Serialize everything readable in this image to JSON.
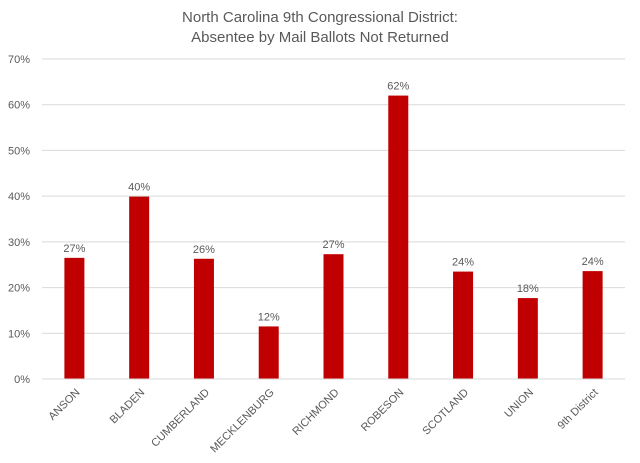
{
  "chart_data": {
    "type": "bar",
    "title": [
      "North Carolina 9th Congressional District:",
      "Absentee by Mail Ballots Not Returned"
    ],
    "xlabel": "",
    "ylabel": "",
    "categories": [
      "ANSON",
      "BLADEN",
      "CUMBERLAND",
      "MECKLENBURG",
      "RICHMOND",
      "ROBESON",
      "SCOTLAND",
      "UNION",
      "9th District"
    ],
    "values": [
      26.5,
      39.9,
      26.3,
      11.5,
      27.3,
      62.0,
      23.5,
      17.7,
      23.6
    ],
    "data_labels": [
      "27%",
      "40%",
      "26%",
      "12%",
      "27%",
      "62%",
      "24%",
      "18%",
      "24%"
    ],
    "ylim": [
      0,
      70
    ],
    "y_ticks": [
      0,
      10,
      20,
      30,
      40,
      50,
      60,
      70
    ],
    "y_tick_labels": [
      "0%",
      "10%",
      "20%",
      "30%",
      "40%",
      "50%",
      "60%",
      "70%"
    ],
    "grid": true,
    "legend": "none",
    "bar_color": "#C00000",
    "gridline_color": "#D9D9D9",
    "text_color": "#595959"
  }
}
